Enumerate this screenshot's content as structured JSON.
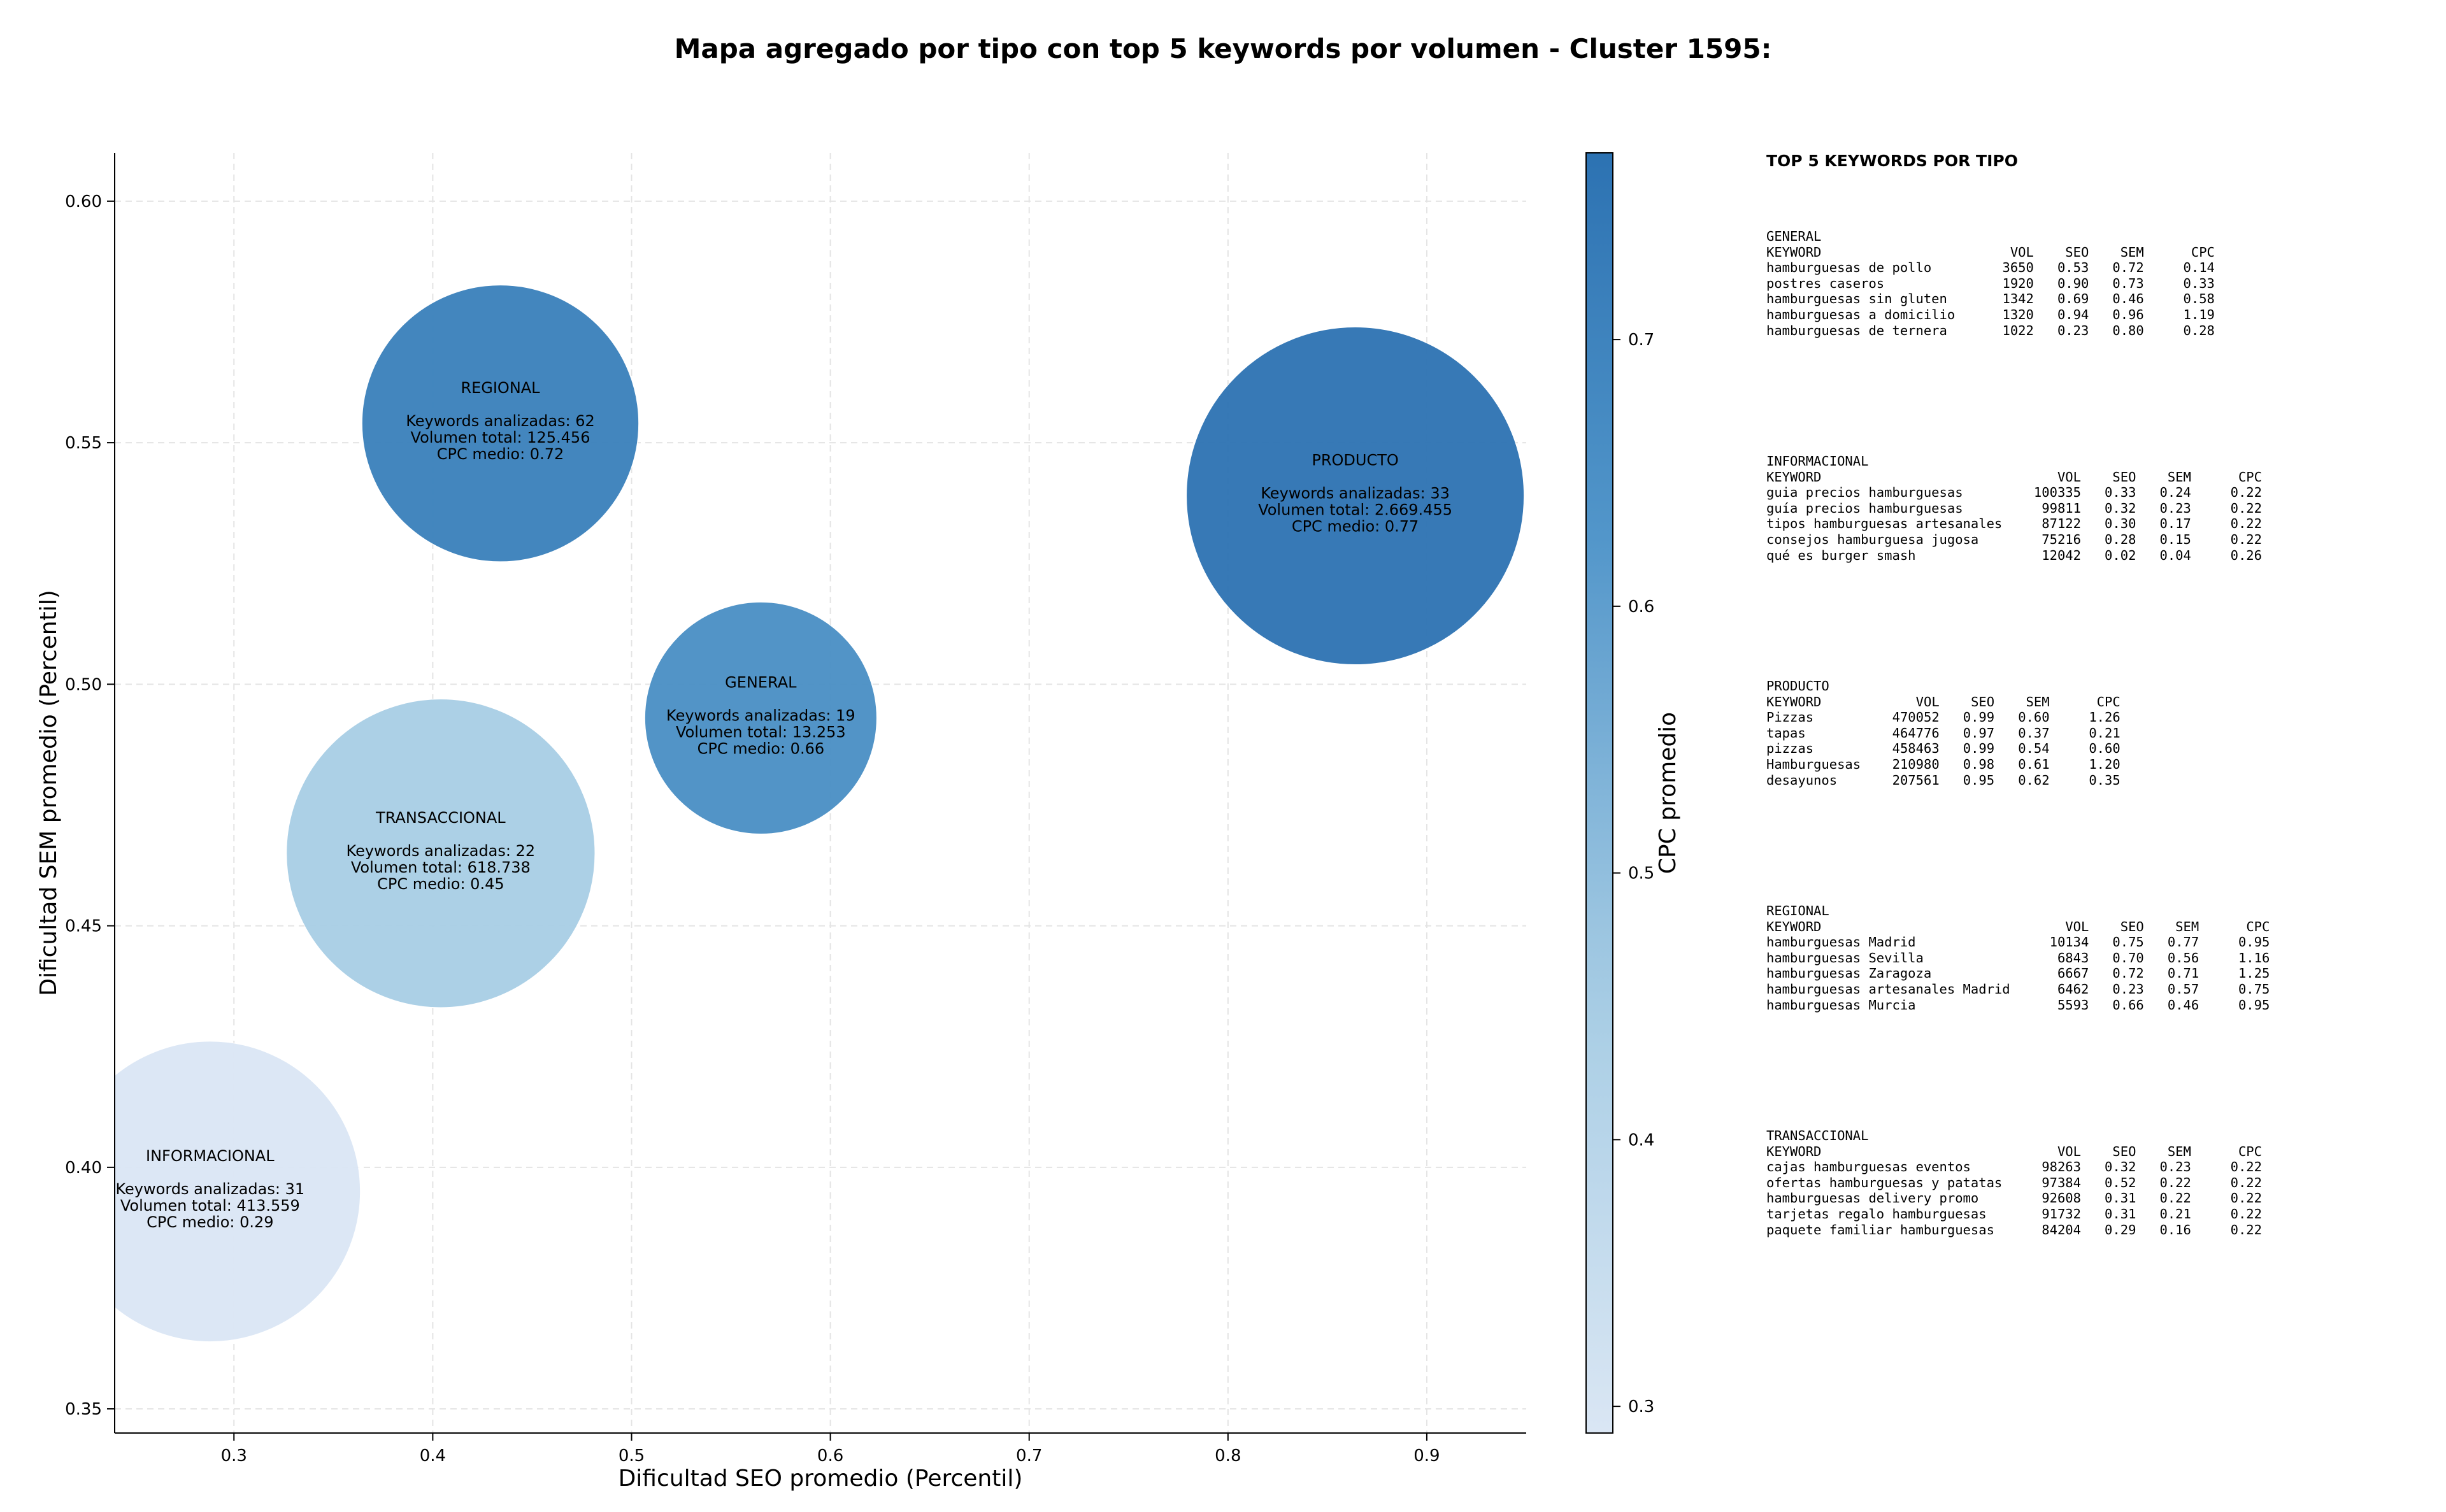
{
  "title": "Mapa agregado por tipo con top 5 keywords por volumen - Cluster 1595:",
  "chart_data": {
    "type": "scatter",
    "xlabel": "Dificultad SEO promedio (Percentil)",
    "ylabel": "Dificultad SEM promedio (Percentil)",
    "xlim": [
      0.24,
      0.95
    ],
    "ylim": [
      0.345,
      0.61
    ],
    "xticks": [
      "0.3",
      "0.4",
      "0.5",
      "0.6",
      "0.7",
      "0.8",
      "0.9"
    ],
    "yticks": [
      "0.35",
      "0.40",
      "0.45",
      "0.50",
      "0.55",
      "0.60"
    ],
    "grid": true,
    "colorbar": {
      "label": "CPC promedio",
      "range": [
        0.29,
        0.77
      ],
      "ticks": [
        "0.3",
        "0.4",
        "0.5",
        "0.6",
        "0.7"
      ],
      "colormap": "Blues"
    },
    "points": [
      {
        "name": "REGIONAL",
        "x": 0.434,
        "y": 0.554,
        "size_value": 125456,
        "cpc": 0.72,
        "lines": [
          "Keywords analizadas: 62",
          "Volumen total: 125.456",
          "CPC medio: 0.72"
        ]
      },
      {
        "name": "PRODUCTO",
        "x": 0.864,
        "y": 0.539,
        "size_value": 2669455,
        "cpc": 0.77,
        "lines": [
          "Keywords analizadas: 33",
          "Volumen total: 2.669.455",
          "CPC medio: 0.77"
        ]
      },
      {
        "name": "GENERAL",
        "x": 0.565,
        "y": 0.493,
        "size_value": 13253,
        "cpc": 0.66,
        "lines": [
          "Keywords analizadas: 19",
          "Volumen total: 13.253",
          "CPC medio: 0.66"
        ]
      },
      {
        "name": "TRANSACCIONAL",
        "x": 0.404,
        "y": 0.465,
        "size_value": 618738,
        "cpc": 0.45,
        "lines": [
          "Keywords analizadas: 22",
          "Volumen total: 618.738",
          "CPC medio: 0.45"
        ]
      },
      {
        "name": "INFORMACIONAL",
        "x": 0.288,
        "y": 0.395,
        "size_value": 413559,
        "cpc": 0.29,
        "lines": [
          "Keywords analizadas: 31",
          "Volumen total: 413.559",
          "CPC medio: 0.29"
        ]
      }
    ]
  },
  "side_panel": {
    "title": "TOP 5 KEYWORDS POR TIPO",
    "headers": [
      "KEYWORD",
      "VOL",
      "SEO",
      "SEM",
      "CPC"
    ],
    "groups": [
      {
        "name": "GENERAL",
        "rows": [
          [
            "hamburguesas de pollo",
            "3650",
            "0.53",
            "0.72",
            "0.14"
          ],
          [
            "postres caseros",
            "1920",
            "0.90",
            "0.73",
            "0.33"
          ],
          [
            "hamburguesas sin gluten",
            "1342",
            "0.69",
            "0.46",
            "0.58"
          ],
          [
            "hamburguesas a domicilio",
            "1320",
            "0.94",
            "0.96",
            "1.19"
          ],
          [
            "hamburguesas de ternera",
            "1022",
            "0.23",
            "0.80",
            "0.28"
          ]
        ]
      },
      {
        "name": "INFORMACIONAL",
        "rows": [
          [
            "guia precios hamburguesas",
            "100335",
            "0.33",
            "0.24",
            "0.22"
          ],
          [
            "guía precios hamburguesas",
            "99811",
            "0.32",
            "0.23",
            "0.22"
          ],
          [
            "tipos hamburguesas artesanales",
            "87122",
            "0.30",
            "0.17",
            "0.22"
          ],
          [
            "consejos hamburguesa jugosa",
            "75216",
            "0.28",
            "0.15",
            "0.22"
          ],
          [
            "qué es burger smash",
            "12042",
            "0.02",
            "0.04",
            "0.26"
          ]
        ]
      },
      {
        "name": "PRODUCTO",
        "rows": [
          [
            "Pizzas",
            "470052",
            "0.99",
            "0.60",
            "1.26"
          ],
          [
            "tapas",
            "464776",
            "0.97",
            "0.37",
            "0.21"
          ],
          [
            "pizzas",
            "458463",
            "0.99",
            "0.54",
            "0.60"
          ],
          [
            "Hamburguesas",
            "210980",
            "0.98",
            "0.61",
            "1.20"
          ],
          [
            "desayunos",
            "207561",
            "0.95",
            "0.62",
            "0.35"
          ]
        ]
      },
      {
        "name": "REGIONAL",
        "rows": [
          [
            "hamburguesas Madrid",
            "10134",
            "0.75",
            "0.77",
            "0.95"
          ],
          [
            "hamburguesas Sevilla",
            "6843",
            "0.70",
            "0.56",
            "1.16"
          ],
          [
            "hamburguesas Zaragoza",
            "6667",
            "0.72",
            "0.71",
            "1.25"
          ],
          [
            "hamburguesas artesanales Madrid",
            "6462",
            "0.23",
            "0.57",
            "0.75"
          ],
          [
            "hamburguesas Murcia",
            "5593",
            "0.66",
            "0.46",
            "0.95"
          ]
        ]
      },
      {
        "name": "TRANSACCIONAL",
        "rows": [
          [
            "cajas hamburguesas eventos",
            "98263",
            "0.32",
            "0.23",
            "0.22"
          ],
          [
            "ofertas hamburguesas y patatas",
            "97384",
            "0.52",
            "0.22",
            "0.22"
          ],
          [
            "hamburguesas delivery promo",
            "92608",
            "0.31",
            "0.22",
            "0.22"
          ],
          [
            "tarjetas regalo hamburguesas",
            "91732",
            "0.31",
            "0.21",
            "0.22"
          ],
          [
            "paquete familiar hamburguesas",
            "84204",
            "0.29",
            "0.16",
            "0.22"
          ]
        ]
      }
    ]
  }
}
